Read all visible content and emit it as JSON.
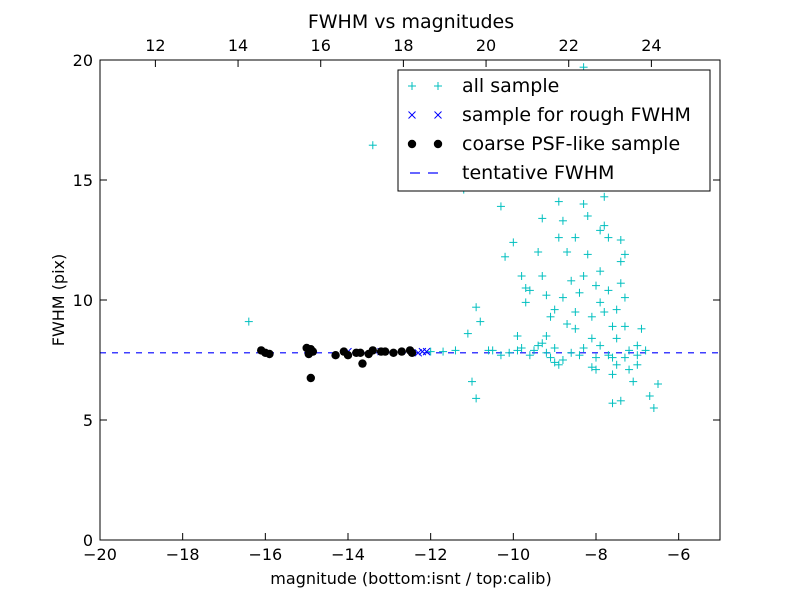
{
  "chart_data": {
    "type": "scatter",
    "title": "FWHM vs magnitudes",
    "xlabel": "magnitude (bottom:isnt / top:calib)",
    "ylabel": "FWHM (pix)",
    "xlim": [
      -20,
      -5
    ],
    "ylim": [
      0,
      20
    ],
    "x_ticks": [
      -20,
      -18,
      -16,
      -14,
      -12,
      -10,
      -8,
      -6
    ],
    "x_tick_labels": [
      "−20",
      "−18",
      "−16",
      "−14",
      "−12",
      "−10",
      "−8",
      "−6"
    ],
    "y_ticks": [
      0,
      5,
      10,
      15,
      20
    ],
    "y_tick_labels": [
      "0",
      "5",
      "10",
      "15",
      "20"
    ],
    "top_axis": {
      "xlim": [
        10.66,
        25.66
      ],
      "ticks": [
        12,
        14,
        16,
        18,
        20,
        22,
        24
      ],
      "tick_labels": [
        "12",
        "14",
        "16",
        "18",
        "20",
        "22",
        "24"
      ]
    },
    "grid": false,
    "legend_position": "top-right",
    "tentative_fwhm": 7.8,
    "colors": {
      "all_sample": "#00bfbf",
      "rough_sample": "#0000ff",
      "psf_like_sample": "#000000",
      "tentative_fwhm": "#0000ff"
    },
    "series": [
      {
        "name": "all sample",
        "marker": "plus",
        "points": [
          [
            -16.4,
            9.1
          ],
          [
            -13.4,
            16.45
          ],
          [
            -11.2,
            14.6
          ],
          [
            -10.9,
            9.7
          ],
          [
            -10.8,
            9.1
          ],
          [
            -11.1,
            8.6
          ],
          [
            -11.0,
            6.6
          ],
          [
            -10.9,
            5.9
          ],
          [
            -10.6,
            7.9
          ],
          [
            -10.3,
            13.9
          ],
          [
            -10.2,
            11.8
          ],
          [
            -10.0,
            12.4
          ],
          [
            -9.8,
            11.0
          ],
          [
            -9.7,
            10.5
          ],
          [
            -9.6,
            10.4
          ],
          [
            -9.7,
            9.9
          ],
          [
            -9.9,
            8.5
          ],
          [
            -9.8,
            8.0
          ],
          [
            -9.6,
            7.7
          ],
          [
            -9.5,
            7.9
          ],
          [
            -9.4,
            8.1
          ],
          [
            -9.3,
            8.2
          ],
          [
            -9.2,
            7.8
          ],
          [
            -9.1,
            7.6
          ],
          [
            -9.0,
            7.4
          ],
          [
            -8.9,
            7.3
          ],
          [
            -8.8,
            7.5
          ],
          [
            -9.2,
            8.5
          ],
          [
            -9.4,
            12.0
          ],
          [
            -9.3,
            11.0
          ],
          [
            -9.3,
            13.4
          ],
          [
            -9.2,
            10.2
          ],
          [
            -9.1,
            9.3
          ],
          [
            -9.0,
            9.6
          ],
          [
            -8.9,
            14.1
          ],
          [
            -8.9,
            12.6
          ],
          [
            -8.8,
            13.3
          ],
          [
            -8.7,
            12.0
          ],
          [
            -8.6,
            10.8
          ],
          [
            -8.5,
            12.6
          ],
          [
            -8.5,
            9.5
          ],
          [
            -8.5,
            8.8
          ],
          [
            -8.4,
            10.3
          ],
          [
            -8.3,
            11.0
          ],
          [
            -8.3,
            14.0
          ],
          [
            -8.2,
            15.1
          ],
          [
            -8.2,
            13.5
          ],
          [
            -8.2,
            11.9
          ],
          [
            -8.1,
            9.3
          ],
          [
            -8.1,
            8.4
          ],
          [
            -8.1,
            7.2
          ],
          [
            -8.0,
            7.1
          ],
          [
            -8.0,
            7.6
          ],
          [
            -7.9,
            8.1
          ],
          [
            -7.9,
            9.9
          ],
          [
            -7.9,
            11.2
          ],
          [
            -7.8,
            13.1
          ],
          [
            -7.8,
            14.3
          ],
          [
            -7.8,
            15.6
          ],
          [
            -7.7,
            16.0
          ],
          [
            -7.7,
            12.6
          ],
          [
            -7.7,
            10.4
          ],
          [
            -7.6,
            8.9
          ],
          [
            -7.6,
            7.6
          ],
          [
            -7.6,
            6.9
          ],
          [
            -7.5,
            7.3
          ],
          [
            -7.5,
            8.4
          ],
          [
            -7.5,
            9.6
          ],
          [
            -7.4,
            10.7
          ],
          [
            -7.4,
            11.6
          ],
          [
            -7.4,
            12.5
          ],
          [
            -7.3,
            11.9
          ],
          [
            -7.3,
            10.1
          ],
          [
            -7.3,
            8.9
          ],
          [
            -7.2,
            7.9
          ],
          [
            -7.2,
            7.1
          ],
          [
            -7.1,
            6.6
          ],
          [
            -7.0,
            7.3
          ],
          [
            -7.0,
            8.1
          ],
          [
            -6.9,
            8.8
          ],
          [
            -6.8,
            7.9
          ],
          [
            -6.7,
            6.0
          ],
          [
            -6.6,
            5.5
          ],
          [
            -6.5,
            6.5
          ],
          [
            -7.6,
            5.7
          ],
          [
            -7.4,
            5.8
          ],
          [
            -8.3,
            19.7
          ],
          [
            -8.2,
            18.0
          ],
          [
            -8.0,
            17.3
          ],
          [
            -7.9,
            16.6
          ],
          [
            -8.5,
            15.4
          ],
          [
            -8.7,
            14.8
          ],
          [
            -8.1,
            16.8
          ],
          [
            -10.3,
            7.7
          ],
          [
            -10.1,
            7.8
          ],
          [
            -9.9,
            7.9
          ],
          [
            -10.5,
            7.9
          ],
          [
            -11.4,
            7.9
          ],
          [
            -11.7,
            7.85
          ],
          [
            -12.0,
            7.85
          ],
          [
            -8.6,
            7.8
          ],
          [
            -8.4,
            7.7
          ],
          [
            -8.3,
            8.0
          ],
          [
            -7.7,
            7.7
          ],
          [
            -7.3,
            7.6
          ],
          [
            -7.0,
            7.7
          ],
          [
            -8.8,
            10.1
          ],
          [
            -9.0,
            8.0
          ],
          [
            -8.7,
            9.0
          ],
          [
            -7.9,
            12.9
          ],
          [
            -8.0,
            10.6
          ],
          [
            -7.8,
            9.5
          ]
        ]
      },
      {
        "name": "sample for rough FWHM",
        "marker": "x",
        "points": [
          [
            -12.1,
            7.85
          ],
          [
            -12.2,
            7.85
          ],
          [
            -12.3,
            7.8
          ],
          [
            -13.2,
            7.85
          ],
          [
            -14.0,
            7.85
          ]
        ]
      },
      {
        "name": "coarse PSF-like sample",
        "marker": "dot",
        "points": [
          [
            -16.1,
            7.9
          ],
          [
            -16.0,
            7.8
          ],
          [
            -15.9,
            7.75
          ],
          [
            -15.0,
            8.0
          ],
          [
            -14.95,
            7.75
          ],
          [
            -14.9,
            7.95
          ],
          [
            -14.85,
            7.85
          ],
          [
            -14.9,
            6.75
          ],
          [
            -14.3,
            7.7
          ],
          [
            -14.1,
            7.85
          ],
          [
            -14.0,
            7.7
          ],
          [
            -13.8,
            7.8
          ],
          [
            -13.7,
            7.8
          ],
          [
            -13.65,
            7.35
          ],
          [
            -13.5,
            7.75
          ],
          [
            -13.4,
            7.9
          ],
          [
            -13.2,
            7.85
          ],
          [
            -13.1,
            7.85
          ],
          [
            -12.9,
            7.8
          ],
          [
            -12.7,
            7.85
          ],
          [
            -12.5,
            7.9
          ],
          [
            -12.45,
            7.8
          ]
        ]
      }
    ],
    "legend": [
      {
        "label": "all sample",
        "marker": "plus"
      },
      {
        "label": "sample for rough FWHM",
        "marker": "x"
      },
      {
        "label": "coarse PSF-like sample",
        "marker": "dot"
      },
      {
        "label": "tentative FWHM",
        "marker": "dash"
      }
    ]
  }
}
